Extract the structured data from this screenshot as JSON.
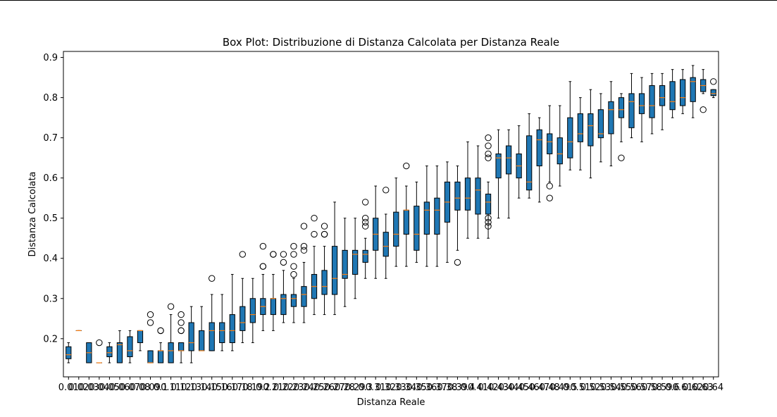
{
  "chart_data": {
    "type": "box",
    "title": "Box Plot: Distribuzione di Distanza Calcolata per Distanza Reale",
    "xlabel": "Distanza Reale",
    "ylabel": "Distanza Calcolata",
    "ylim": [
      0.105,
      0.915
    ],
    "yticks": [
      0.2,
      0.3,
      0.4,
      0.5,
      0.6,
      0.7,
      0.8,
      0.9
    ],
    "grid": false,
    "box_color": "#1f77b4",
    "median_color": "#ff7f0e",
    "categories": [
      "0.01",
      "0.02",
      "0.03",
      "0.04",
      "0.05",
      "0.06",
      "0.07",
      "0.08",
      "0.09",
      "0.1",
      "0.11",
      "0.12",
      "0.13",
      "0.14",
      "0.15",
      "0.16",
      "0.17",
      "0.18",
      "0.19",
      "0.2",
      "0.21",
      "0.22",
      "0.23",
      "0.24",
      "0.25",
      "0.26",
      "0.27",
      "0.28",
      "0.29",
      "0.3",
      "0.31",
      "0.32",
      "0.33",
      "0.34",
      "0.35",
      "0.36",
      "0.37",
      "0.38",
      "0.39",
      "0.4",
      "0.41",
      "0.42",
      "0.43",
      "0.44",
      "0.45",
      "0.46",
      "0.47",
      "0.48",
      "0.49",
      "0.5",
      "0.51",
      "0.52",
      "0.53",
      "0.54",
      "0.55",
      "0.56",
      "0.57",
      "0.58",
      "0.59",
      "0.6",
      "0.61",
      "0.62",
      "0.63",
      "0.64"
    ],
    "boxes": [
      {
        "whislo": 0.14,
        "q1": 0.15,
        "med": 0.16,
        "q3": 0.18,
        "whishi": 0.19,
        "fliers": []
      },
      {
        "whislo": 0.22,
        "q1": 0.22,
        "med": 0.22,
        "q3": 0.22,
        "whishi": 0.22,
        "fliers": []
      },
      {
        "whislo": 0.14,
        "q1": 0.14,
        "med": 0.165,
        "q3": 0.19,
        "whishi": 0.19,
        "fliers": []
      },
      {
        "whislo": 0.14,
        "q1": 0.14,
        "med": 0.14,
        "q3": 0.14,
        "whishi": 0.14,
        "fliers": [
          0.19
        ]
      },
      {
        "whislo": 0.14,
        "q1": 0.155,
        "med": 0.165,
        "q3": 0.18,
        "whishi": 0.19,
        "fliers": []
      },
      {
        "whislo": 0.14,
        "q1": 0.14,
        "med": 0.185,
        "q3": 0.19,
        "whishi": 0.22,
        "fliers": []
      },
      {
        "whislo": 0.14,
        "q1": 0.155,
        "med": 0.17,
        "q3": 0.205,
        "whishi": 0.22,
        "fliers": []
      },
      {
        "whislo": 0.17,
        "q1": 0.19,
        "med": 0.22,
        "q3": 0.22,
        "whishi": 0.22,
        "fliers": []
      },
      {
        "whislo": 0.14,
        "q1": 0.14,
        "med": 0.14,
        "q3": 0.17,
        "whishi": 0.17,
        "fliers": [
          0.24,
          0.26
        ]
      },
      {
        "whislo": 0.14,
        "q1": 0.14,
        "med": 0.17,
        "q3": 0.17,
        "whishi": 0.19,
        "fliers": [
          0.22,
          0.22
        ]
      },
      {
        "whislo": 0.14,
        "q1": 0.14,
        "med": 0.17,
        "q3": 0.19,
        "whishi": 0.26,
        "fliers": [
          0.28
        ]
      },
      {
        "whislo": 0.14,
        "q1": 0.17,
        "med": 0.17,
        "q3": 0.19,
        "whishi": 0.19,
        "fliers": [
          0.22,
          0.22,
          0.24,
          0.26
        ]
      },
      {
        "whislo": 0.14,
        "q1": 0.17,
        "med": 0.19,
        "q3": 0.24,
        "whishi": 0.28,
        "fliers": []
      },
      {
        "whislo": 0.17,
        "q1": 0.17,
        "med": 0.17,
        "q3": 0.22,
        "whishi": 0.28,
        "fliers": []
      },
      {
        "whislo": 0.17,
        "q1": 0.17,
        "med": 0.22,
        "q3": 0.24,
        "whishi": 0.31,
        "fliers": [
          0.35
        ]
      },
      {
        "whislo": 0.17,
        "q1": 0.19,
        "med": 0.22,
        "q3": 0.24,
        "whishi": 0.31,
        "fliers": []
      },
      {
        "whislo": 0.17,
        "q1": 0.19,
        "med": 0.22,
        "q3": 0.26,
        "whishi": 0.36,
        "fliers": []
      },
      {
        "whislo": 0.19,
        "q1": 0.22,
        "med": 0.24,
        "q3": 0.28,
        "whishi": 0.35,
        "fliers": [
          0.41
        ]
      },
      {
        "whislo": 0.19,
        "q1": 0.24,
        "med": 0.26,
        "q3": 0.3,
        "whishi": 0.35,
        "fliers": []
      },
      {
        "whislo": 0.22,
        "q1": 0.26,
        "med": 0.28,
        "q3": 0.3,
        "whishi": 0.36,
        "fliers": [
          0.38,
          0.38,
          0.43
        ]
      },
      {
        "whislo": 0.22,
        "q1": 0.26,
        "med": 0.3,
        "q3": 0.3,
        "whishi": 0.36,
        "fliers": [
          0.41,
          0.41
        ]
      },
      {
        "whislo": 0.24,
        "q1": 0.26,
        "med": 0.3,
        "q3": 0.31,
        "whishi": 0.37,
        "fliers": [
          0.39,
          0.41
        ]
      },
      {
        "whislo": 0.24,
        "q1": 0.28,
        "med": 0.3,
        "q3": 0.31,
        "whishi": 0.35,
        "fliers": [
          0.36,
          0.38,
          0.41,
          0.43
        ]
      },
      {
        "whislo": 0.24,
        "q1": 0.28,
        "med": 0.31,
        "q3": 0.33,
        "whishi": 0.39,
        "fliers": [
          0.42,
          0.43,
          0.48
        ]
      },
      {
        "whislo": 0.26,
        "q1": 0.3,
        "med": 0.33,
        "q3": 0.36,
        "whishi": 0.43,
        "fliers": [
          0.46,
          0.5
        ]
      },
      {
        "whislo": 0.26,
        "q1": 0.31,
        "med": 0.33,
        "q3": 0.37,
        "whishi": 0.43,
        "fliers": [
          0.46,
          0.46,
          0.48
        ]
      },
      {
        "whislo": 0.26,
        "q1": 0.31,
        "med": 0.35,
        "q3": 0.43,
        "whishi": 0.54,
        "fliers": []
      },
      {
        "whislo": 0.28,
        "q1": 0.35,
        "med": 0.36,
        "q3": 0.42,
        "whishi": 0.5,
        "fliers": []
      },
      {
        "whislo": 0.3,
        "q1": 0.36,
        "med": 0.41,
        "q3": 0.42,
        "whishi": 0.5,
        "fliers": []
      },
      {
        "whislo": 0.35,
        "q1": 0.39,
        "med": 0.41,
        "q3": 0.42,
        "whishi": 0.45,
        "fliers": [
          0.48,
          0.49,
          0.5,
          0.54
        ]
      },
      {
        "whislo": 0.35,
        "q1": 0.42,
        "med": 0.46,
        "q3": 0.5,
        "whishi": 0.58,
        "fliers": []
      },
      {
        "whislo": 0.35,
        "q1": 0.405,
        "med": 0.43,
        "q3": 0.465,
        "whishi": 0.51,
        "fliers": [
          0.57
        ]
      },
      {
        "whislo": 0.38,
        "q1": 0.43,
        "med": 0.46,
        "q3": 0.515,
        "whishi": 0.6,
        "fliers": []
      },
      {
        "whislo": 0.38,
        "q1": 0.46,
        "med": 0.52,
        "q3": 0.52,
        "whishi": 0.58,
        "fliers": [
          0.63
        ]
      },
      {
        "whislo": 0.39,
        "q1": 0.42,
        "med": 0.46,
        "q3": 0.53,
        "whishi": 0.59,
        "fliers": []
      },
      {
        "whislo": 0.38,
        "q1": 0.46,
        "med": 0.52,
        "q3": 0.54,
        "whishi": 0.63,
        "fliers": []
      },
      {
        "whislo": 0.38,
        "q1": 0.46,
        "med": 0.52,
        "q3": 0.55,
        "whishi": 0.63,
        "fliers": []
      },
      {
        "whislo": 0.39,
        "q1": 0.49,
        "med": 0.54,
        "q3": 0.59,
        "whishi": 0.64,
        "fliers": []
      },
      {
        "whislo": 0.42,
        "q1": 0.52,
        "med": 0.55,
        "q3": 0.59,
        "whishi": 0.63,
        "fliers": [
          0.39
        ]
      },
      {
        "whislo": 0.45,
        "q1": 0.52,
        "med": 0.55,
        "q3": 0.6,
        "whishi": 0.69,
        "fliers": []
      },
      {
        "whislo": 0.45,
        "q1": 0.51,
        "med": 0.57,
        "q3": 0.6,
        "whishi": 0.68,
        "fliers": []
      },
      {
        "whislo": 0.45,
        "q1": 0.51,
        "med": 0.54,
        "q3": 0.56,
        "whishi": 0.59,
        "fliers": [
          0.48,
          0.49,
          0.5,
          0.65,
          0.66,
          0.68,
          0.7
        ]
      },
      {
        "whislo": 0.5,
        "q1": 0.6,
        "med": 0.65,
        "q3": 0.66,
        "whishi": 0.72,
        "fliers": []
      },
      {
        "whislo": 0.5,
        "q1": 0.61,
        "med": 0.65,
        "q3": 0.68,
        "whishi": 0.72,
        "fliers": []
      },
      {
        "whislo": 0.55,
        "q1": 0.6,
        "med": 0.63,
        "q3": 0.66,
        "whishi": 0.73,
        "fliers": []
      },
      {
        "whislo": 0.55,
        "q1": 0.57,
        "med": 0.59,
        "q3": 0.705,
        "whishi": 0.76,
        "fliers": []
      },
      {
        "whislo": 0.54,
        "q1": 0.63,
        "med": 0.695,
        "q3": 0.72,
        "whishi": 0.75,
        "fliers": []
      },
      {
        "whislo": 0.59,
        "q1": 0.66,
        "med": 0.69,
        "q3": 0.71,
        "whishi": 0.78,
        "fliers": [
          0.55,
          0.58
        ]
      },
      {
        "whislo": 0.58,
        "q1": 0.635,
        "med": 0.66,
        "q3": 0.7,
        "whishi": 0.78,
        "fliers": []
      },
      {
        "whislo": 0.62,
        "q1": 0.65,
        "med": 0.69,
        "q3": 0.75,
        "whishi": 0.84,
        "fliers": []
      },
      {
        "whislo": 0.62,
        "q1": 0.69,
        "med": 0.71,
        "q3": 0.76,
        "whishi": 0.8,
        "fliers": []
      },
      {
        "whislo": 0.6,
        "q1": 0.68,
        "med": 0.73,
        "q3": 0.76,
        "whishi": 0.82,
        "fliers": []
      },
      {
        "whislo": 0.64,
        "q1": 0.7,
        "med": 0.71,
        "q3": 0.77,
        "whishi": 0.81,
        "fliers": []
      },
      {
        "whislo": 0.63,
        "q1": 0.71,
        "med": 0.77,
        "q3": 0.79,
        "whishi": 0.84,
        "fliers": []
      },
      {
        "whislo": 0.69,
        "q1": 0.75,
        "med": 0.77,
        "q3": 0.8,
        "whishi": 0.81,
        "fliers": [
          0.65
        ]
      },
      {
        "whislo": 0.7,
        "q1": 0.725,
        "med": 0.79,
        "q3": 0.81,
        "whishi": 0.86,
        "fliers": []
      },
      {
        "whislo": 0.69,
        "q1": 0.76,
        "med": 0.78,
        "q3": 0.81,
        "whishi": 0.85,
        "fliers": []
      },
      {
        "whislo": 0.71,
        "q1": 0.75,
        "med": 0.78,
        "q3": 0.83,
        "whishi": 0.86,
        "fliers": []
      },
      {
        "whislo": 0.72,
        "q1": 0.78,
        "med": 0.8,
        "q3": 0.83,
        "whishi": 0.86,
        "fliers": []
      },
      {
        "whislo": 0.75,
        "q1": 0.77,
        "med": 0.79,
        "q3": 0.84,
        "whishi": 0.87,
        "fliers": []
      },
      {
        "whislo": 0.76,
        "q1": 0.78,
        "med": 0.8,
        "q3": 0.845,
        "whishi": 0.87,
        "fliers": []
      },
      {
        "whislo": 0.75,
        "q1": 0.79,
        "med": 0.84,
        "q3": 0.85,
        "whishi": 0.88,
        "fliers": []
      },
      {
        "whislo": 0.81,
        "q1": 0.815,
        "med": 0.83,
        "q3": 0.845,
        "whishi": 0.87,
        "fliers": [
          0.77
        ]
      },
      {
        "whislo": 0.8,
        "q1": 0.805,
        "med": 0.81,
        "q3": 0.82,
        "whishi": 0.82,
        "fliers": [
          0.84
        ]
      }
    ]
  }
}
